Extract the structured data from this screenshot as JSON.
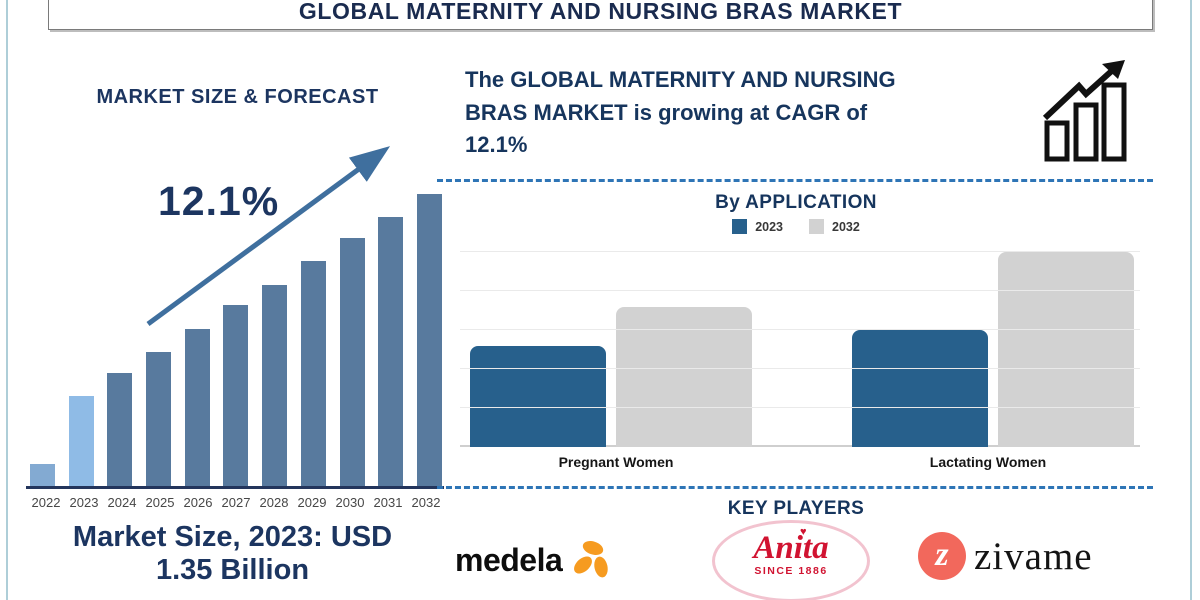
{
  "title_bar": {
    "title": "GLOBAL MATERNITY AND NURSING BRAS MARKET"
  },
  "colors": {
    "navy_text": "#1c3560",
    "forecast_bar_2022": "#83aad2",
    "forecast_bar_2023": "#8fbbe6",
    "forecast_bar_default": "#587a9e",
    "trend_arrow_blue": "#3f6f9e",
    "application_2023_blue": "#27608c",
    "application_2032_gray": "#d2d2d2",
    "dashed_divider_blue": "#2e75b6",
    "page_edge_blue": "#aeced8",
    "medela_orange": "#f69b20",
    "anita_red": "#d11331",
    "zivame_coral": "#f2685c"
  },
  "left_panel": {
    "chart_title": "MARKET SIZE & FORECAST",
    "cagr_annotation": "12.1%",
    "caption_line1": "Market Size, 2023: USD",
    "caption_line2": "1.35 Billion"
  },
  "right_panel": {
    "headline": "The GLOBAL MATERNITY AND NURSING BRAS MARKET is growing at CAGR of 12.1%",
    "app_section_title": "By APPLICATION",
    "legend": [
      {
        "label": "2023",
        "color": "#27608c"
      },
      {
        "label": "2032",
        "color": "#d2d2d2"
      }
    ],
    "key_players_title": "KEY PLAYERS",
    "players": [
      {
        "name": "medela"
      },
      {
        "name": "Anita",
        "icon": "♥",
        "tagline": "SINCE 1886"
      },
      {
        "name": "zivame",
        "monogram": "z"
      }
    ]
  },
  "chart_data": [
    {
      "name": "market-size-forecast",
      "type": "bar",
      "title": "MARKET SIZE & FORECAST",
      "categories": [
        "2022",
        "2023",
        "2024",
        "2025",
        "2026",
        "2027",
        "2028",
        "2029",
        "2030",
        "2031",
        "2032"
      ],
      "values": [
        8,
        31,
        39,
        46,
        54,
        62,
        69,
        77,
        85,
        92,
        100
      ],
      "values_note": "relative bar heights, % of 2032 bar (no y-axis shown); known point 2023 = USD 1.35 Billion",
      "annotation": "12.1%",
      "bar_colors": [
        "#83aad2",
        "#8fbbe6",
        "#587a9e",
        "#587a9e",
        "#587a9e",
        "#587a9e",
        "#587a9e",
        "#587a9e",
        "#587a9e",
        "#587a9e",
        "#587a9e"
      ],
      "grid": false,
      "legend_position": "none"
    },
    {
      "name": "by-application",
      "type": "bar",
      "title": "By APPLICATION",
      "categories": [
        "Pregnant Women",
        "Lactating Women"
      ],
      "series": [
        {
          "name": "2023",
          "color": "#27608c",
          "values": [
            2.6,
            3.0
          ]
        },
        {
          "name": "2032",
          "color": "#d2d2d2",
          "values": [
            3.6,
            5.0
          ]
        }
      ],
      "ylim": [
        0,
        5
      ],
      "values_note": "relative units read from unlabeled gridlines (5 intervals)",
      "grid": true,
      "legend_position": "top"
    }
  ]
}
